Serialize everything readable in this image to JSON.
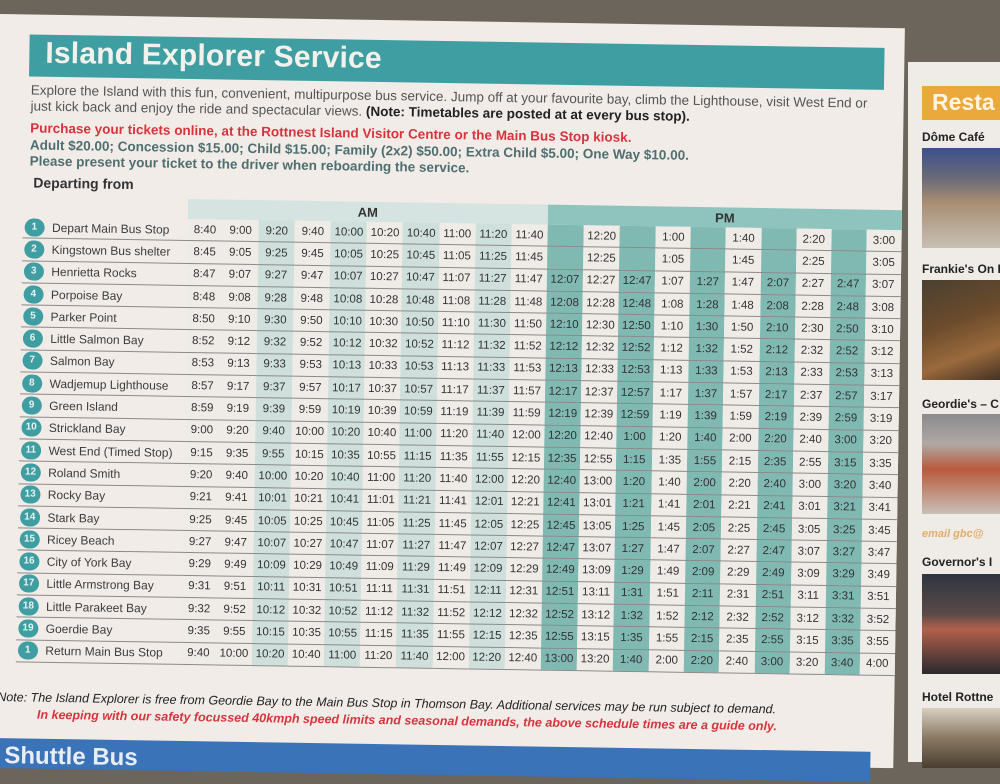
{
  "title": "Island Explorer Service",
  "intro": {
    "text": "Explore the Island with this fun, convenient, multipurpose bus service. Jump off at your favourite bay, climb the Lighthouse, visit West End or just kick back and enjoy the ride and spectacular views.",
    "note": "(Note: Timetables are posted at at every bus stop)."
  },
  "purchase": "Purchase your tickets online, at the Rottnest Island Visitor Centre or the Main Bus Stop kiosk.",
  "prices": "Adult $20.00; Concession $15.00; Child $15.00; Family (2x2) $50.00; Extra Child $5.00; One Way $10.00.",
  "present": "Please present your ticket to the driver when reboarding the service.",
  "departing_label": "Departing from",
  "period_headers": {
    "am": "AM",
    "pm": "PM"
  },
  "stops": [
    {
      "num": "1",
      "name": "Depart Main Bus Stop",
      "times": [
        "8:40",
        "9:00",
        "9:20",
        "9:40",
        "10:00",
        "10:20",
        "10:40",
        "11:00",
        "11:20",
        "11:40",
        "",
        "12:20",
        "",
        "1:00",
        "",
        "1:40",
        "",
        "2:20",
        "",
        "3:00"
      ]
    },
    {
      "num": "2",
      "name": "Kingstown Bus shelter",
      "times": [
        "8:45",
        "9:05",
        "9:25",
        "9:45",
        "10:05",
        "10:25",
        "10:45",
        "11:05",
        "11:25",
        "11:45",
        "",
        "12:25",
        "",
        "1:05",
        "",
        "1:45",
        "",
        "2:25",
        "",
        "3:05"
      ]
    },
    {
      "num": "3",
      "name": "Henrietta Rocks",
      "times": [
        "8:47",
        "9:07",
        "9:27",
        "9:47",
        "10:07",
        "10:27",
        "10:47",
        "11:07",
        "11:27",
        "11:47",
        "12:07",
        "12:27",
        "12:47",
        "1:07",
        "1:27",
        "1:47",
        "2:07",
        "2:27",
        "2:47",
        "3:07"
      ]
    },
    {
      "num": "4",
      "name": "Porpoise Bay",
      "times": [
        "8:48",
        "9:08",
        "9:28",
        "9:48",
        "10:08",
        "10:28",
        "10:48",
        "11:08",
        "11:28",
        "11:48",
        "12:08",
        "12:28",
        "12:48",
        "1:08",
        "1:28",
        "1:48",
        "2:08",
        "2:28",
        "2:48",
        "3:08"
      ]
    },
    {
      "num": "5",
      "name": "Parker Point",
      "times": [
        "8:50",
        "9:10",
        "9:30",
        "9:50",
        "10:10",
        "10:30",
        "10:50",
        "11:10",
        "11:30",
        "11:50",
        "12:10",
        "12:30",
        "12:50",
        "1:10",
        "1:30",
        "1:50",
        "2:10",
        "2:30",
        "2:50",
        "3:10"
      ]
    },
    {
      "num": "6",
      "name": "Little Salmon Bay",
      "times": [
        "8:52",
        "9:12",
        "9:32",
        "9:52",
        "10:12",
        "10:32",
        "10:52",
        "11:12",
        "11:32",
        "11:52",
        "12:12",
        "12:32",
        "12:52",
        "1:12",
        "1:32",
        "1:52",
        "2:12",
        "2:32",
        "2:52",
        "3:12"
      ]
    },
    {
      "num": "7",
      "name": "Salmon Bay",
      "times": [
        "8:53",
        "9:13",
        "9:33",
        "9:53",
        "10:13",
        "10:33",
        "10:53",
        "11:13",
        "11:33",
        "11:53",
        "12:13",
        "12:33",
        "12:53",
        "1:13",
        "1:33",
        "1:53",
        "2:13",
        "2:33",
        "2:53",
        "3:13"
      ]
    },
    {
      "num": "8",
      "name": "Wadjemup Lighthouse",
      "times": [
        "8:57",
        "9:17",
        "9:37",
        "9:57",
        "10:17",
        "10:37",
        "10:57",
        "11:17",
        "11:37",
        "11:57",
        "12:17",
        "12:37",
        "12:57",
        "1:17",
        "1:37",
        "1:57",
        "2:17",
        "2:37",
        "2:57",
        "3:17"
      ]
    },
    {
      "num": "9",
      "name": "Green Island",
      "times": [
        "8:59",
        "9:19",
        "9:39",
        "9:59",
        "10:19",
        "10:39",
        "10:59",
        "11:19",
        "11:39",
        "11:59",
        "12:19",
        "12:39",
        "12:59",
        "1:19",
        "1:39",
        "1:59",
        "2:19",
        "2:39",
        "2:59",
        "3:19"
      ]
    },
    {
      "num": "10",
      "name": "Strickland Bay",
      "times": [
        "9:00",
        "9:20",
        "9:40",
        "10:00",
        "10:20",
        "10:40",
        "11:00",
        "11:20",
        "11:40",
        "12:00",
        "12:20",
        "12:40",
        "1:00",
        "1:20",
        "1:40",
        "2:00",
        "2:20",
        "2:40",
        "3:00",
        "3:20"
      ]
    },
    {
      "num": "11",
      "name": "West End (Timed Stop)",
      "times": [
        "9:15",
        "9:35",
        "9:55",
        "10:15",
        "10:35",
        "10:55",
        "11:15",
        "11:35",
        "11:55",
        "12:15",
        "12:35",
        "12:55",
        "1:15",
        "1:35",
        "1:55",
        "2:15",
        "2:35",
        "2:55",
        "3:15",
        "3:35"
      ]
    },
    {
      "num": "12",
      "name": "Roland Smith",
      "times": [
        "9:20",
        "9:40",
        "10:00",
        "10:20",
        "10:40",
        "11:00",
        "11:20",
        "11:40",
        "12:00",
        "12:20",
        "12:40",
        "13:00",
        "1:20",
        "1:40",
        "2:00",
        "2:20",
        "2:40",
        "3:00",
        "3:20",
        "3:40"
      ]
    },
    {
      "num": "13",
      "name": "Rocky Bay",
      "times": [
        "9:21",
        "9:41",
        "10:01",
        "10:21",
        "10:41",
        "11:01",
        "11:21",
        "11:41",
        "12:01",
        "12:21",
        "12:41",
        "13:01",
        "1:21",
        "1:41",
        "2:01",
        "2:21",
        "2:41",
        "3:01",
        "3:21",
        "3:41"
      ]
    },
    {
      "num": "14",
      "name": "Stark Bay",
      "times": [
        "9:25",
        "9:45",
        "10:05",
        "10:25",
        "10:45",
        "11:05",
        "11:25",
        "11:45",
        "12:05",
        "12:25",
        "12:45",
        "13:05",
        "1:25",
        "1:45",
        "2:05",
        "2:25",
        "2:45",
        "3:05",
        "3:25",
        "3:45"
      ]
    },
    {
      "num": "15",
      "name": "Ricey Beach",
      "times": [
        "9:27",
        "9:47",
        "10:07",
        "10:27",
        "10:47",
        "11:07",
        "11:27",
        "11:47",
        "12:07",
        "12:27",
        "12:47",
        "13:07",
        "1:27",
        "1:47",
        "2:07",
        "2:27",
        "2:47",
        "3:07",
        "3:27",
        "3:47"
      ]
    },
    {
      "num": "16",
      "name": "City of York Bay",
      "times": [
        "9:29",
        "9:49",
        "10:09",
        "10:29",
        "10:49",
        "11:09",
        "11:29",
        "11:49",
        "12:09",
        "12:29",
        "12:49",
        "13:09",
        "1:29",
        "1:49",
        "2:09",
        "2:29",
        "2:49",
        "3:09",
        "3:29",
        "3:49"
      ]
    },
    {
      "num": "17",
      "name": "Little Armstrong Bay",
      "times": [
        "9:31",
        "9:51",
        "10:11",
        "10:31",
        "10:51",
        "11:11",
        "11:31",
        "11:51",
        "12:11",
        "12:31",
        "12:51",
        "13:11",
        "1:31",
        "1:51",
        "2:11",
        "2:31",
        "2:51",
        "3:11",
        "3:31",
        "3:51"
      ]
    },
    {
      "num": "18",
      "name": "Little Parakeet Bay",
      "times": [
        "9:32",
        "9:52",
        "10:12",
        "10:32",
        "10:52",
        "11:12",
        "11:32",
        "11:52",
        "12:12",
        "12:32",
        "12:52",
        "13:12",
        "1:32",
        "1:52",
        "2:12",
        "2:32",
        "2:52",
        "3:12",
        "3:32",
        "3:52"
      ]
    },
    {
      "num": "19",
      "name": "Goerdie Bay",
      "times": [
        "9:35",
        "9:55",
        "10:15",
        "10:35",
        "10:55",
        "11:15",
        "11:35",
        "11:55",
        "12:15",
        "12:35",
        "12:55",
        "13:15",
        "1:35",
        "1:55",
        "2:15",
        "2:35",
        "2:55",
        "3:15",
        "3:35",
        "3:55"
      ]
    },
    {
      "num": "1",
      "name": "Return Main Bus Stop",
      "times": [
        "9:40",
        "10:00",
        "10:20",
        "10:40",
        "11:00",
        "11:20",
        "11:40",
        "12:00",
        "12:20",
        "12:40",
        "13:00",
        "13:20",
        "1:40",
        "2:00",
        "2:20",
        "2:40",
        "3:00",
        "3:20",
        "3:40",
        "4:00"
      ]
    }
  ],
  "notes": {
    "free": "Note: The Island Explorer is free from Geordie Bay to the Main Bus Stop in Thomson Bay. Additional services may be run subject to demand.",
    "guide": "In keeping with our safety focussed 40kmph speed limits and seasonal demands, the above schedule times are a guide only."
  },
  "next_section": "Shuttle Bus",
  "right_page": {
    "banner": "Resta",
    "items": [
      {
        "label": "Dôme Café"
      },
      {
        "label": "Frankie's On F"
      },
      {
        "label": "Geordie's – C",
        "email": "email gbc@"
      },
      {
        "label": "Governor's I"
      },
      {
        "label": "Hotel Rottne"
      }
    ]
  },
  "colors": {
    "teal": "#3f9ea2",
    "pm_column": "#7fb9b2",
    "am_shade": "#cfe0dc",
    "red": "#d8333d",
    "restaurants_orange": "#eba93b",
    "shuttle_blue": "#3b73b9"
  }
}
